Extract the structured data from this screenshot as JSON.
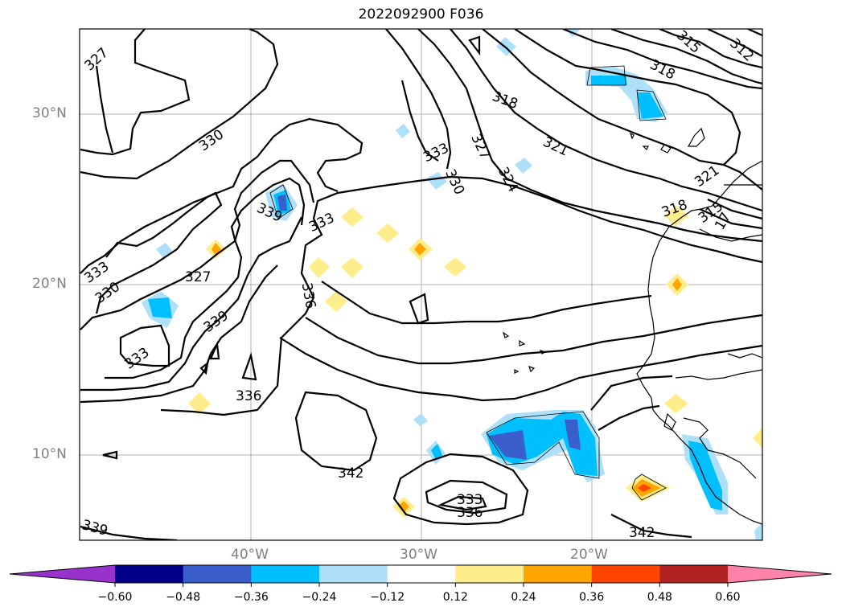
{
  "title": "2022092900 F036",
  "lat_ticks": [
    "30°N",
    "20°N",
    "10°N"
  ],
  "lon_ticks": [
    "40°W",
    "30°W",
    "20°W"
  ],
  "colorbar": {
    "colors": [
      "#9932cc",
      "#00008b",
      "#3a5fcd",
      "#00bfff",
      "#afe0fa",
      "#ffffff",
      "#ffec8b",
      "#ffa500",
      "#ff4500",
      "#b22222",
      "#ff82ab"
    ],
    "ticks": [
      "−0.60",
      "−0.48",
      "−0.36",
      "−0.24",
      "−0.12",
      "0.12",
      "0.24",
      "0.36",
      "0.48",
      "0.60"
    ]
  },
  "contour_labels": [
    "327",
    "330",
    "333",
    "330",
    "327",
    "339",
    "333",
    "336",
    "339",
    "333",
    "336",
    "342",
    "333",
    "336",
    "342",
    "339",
    "333",
    "330",
    "327",
    "324",
    "318",
    "321",
    "318",
    "315",
    "312",
    "321",
    "318",
    "315",
    "17"
  ]
}
